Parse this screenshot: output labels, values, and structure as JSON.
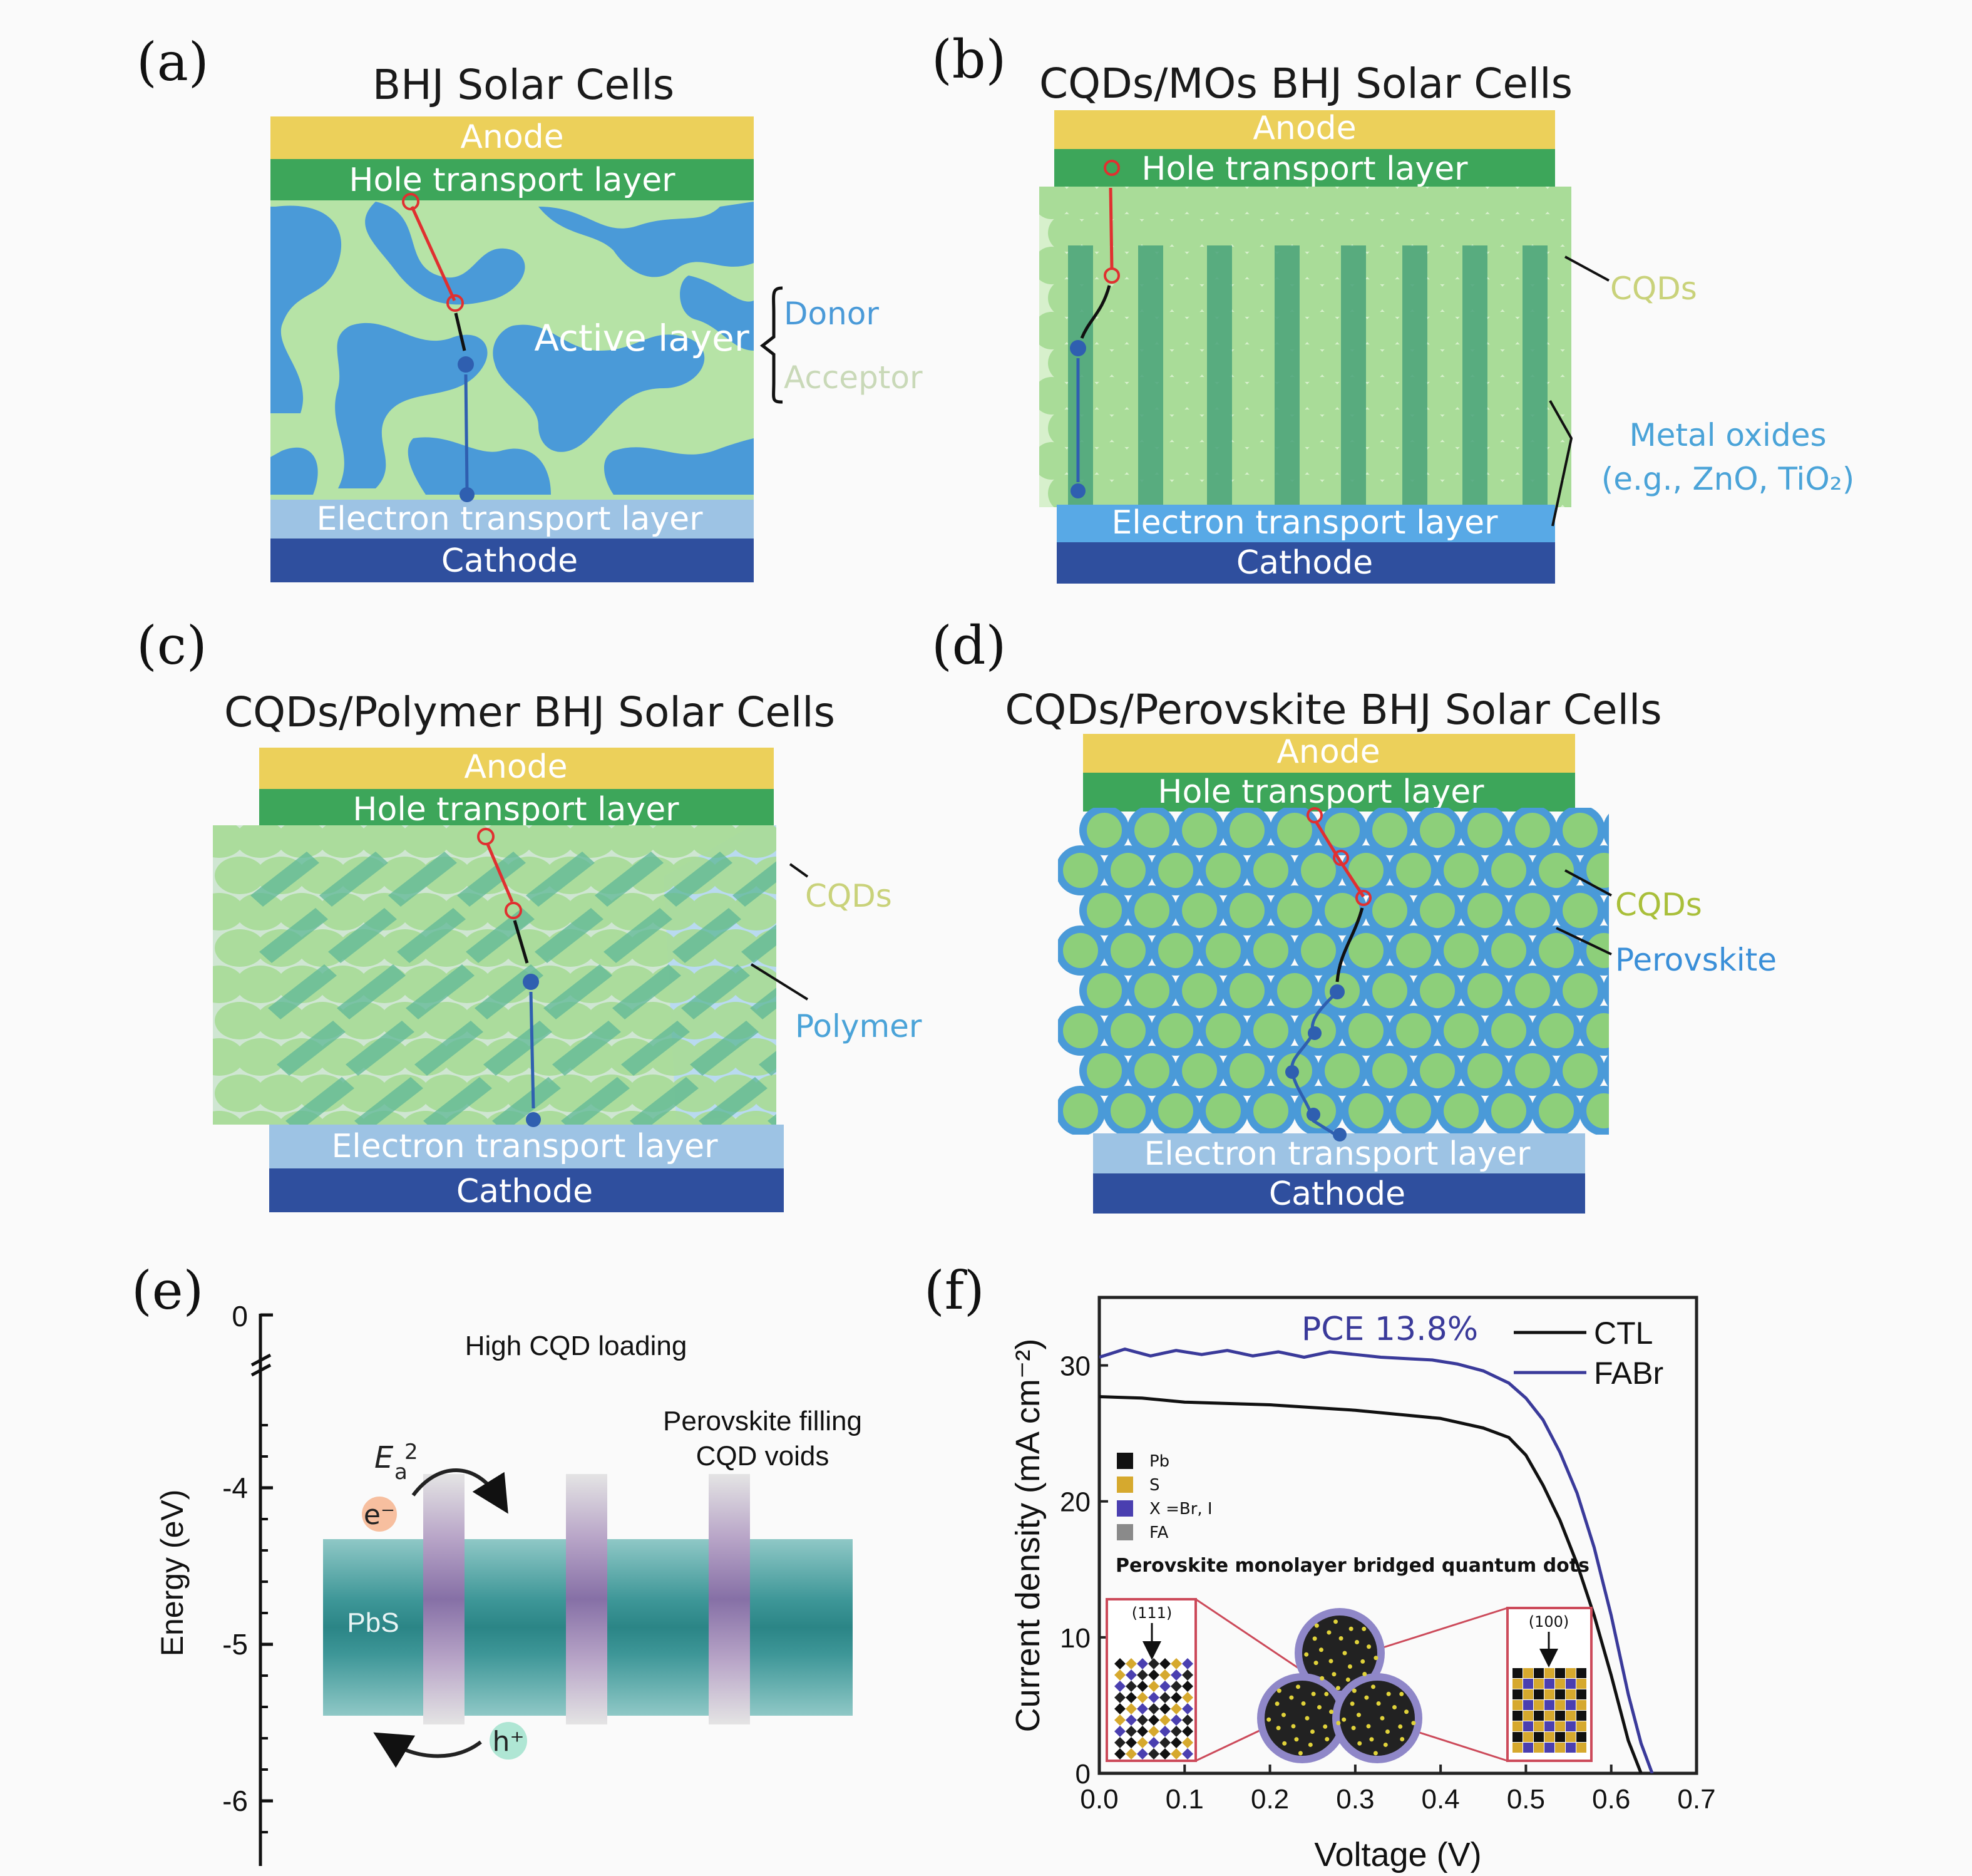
{
  "panels": {
    "a": {
      "label": "(a)",
      "title": "BHJ Solar Cells",
      "anode": "Anode",
      "htl": "Hole transport layer",
      "active": "Active layer",
      "etl": "Electron transport layer",
      "cathode": "Cathode",
      "donor": "Donor",
      "acceptor": "Acceptor"
    },
    "b": {
      "label": "(b)",
      "title": "CQDs/MOs BHJ Solar Cells",
      "anode": "Anode",
      "htl": "Hole transport layer",
      "etl": "Electron transport layer",
      "cathode": "Cathode",
      "cqds": "CQDs",
      "mo_line1": "Metal oxides",
      "mo_line2": "(e.g., ZnO, TiO₂)"
    },
    "c": {
      "label": "(c)",
      "title": "CQDs/Polymer BHJ Solar Cells",
      "anode": "Anode",
      "htl": "Hole transport layer",
      "etl": "Electron transport layer",
      "cathode": "Cathode",
      "cqds": "CQDs",
      "polymer": "Polymer"
    },
    "d": {
      "label": "(d)",
      "title": "CQDs/Perovskite BHJ Solar Cells",
      "anode": "Anode",
      "htl": "Hole transport layer",
      "etl": "Electron transport layer",
      "cathode": "Cathode",
      "cqds": "CQDs",
      "perovskite": "Perovskite"
    },
    "e": {
      "label": "(e)",
      "ylabel": "Energy (eV)",
      "ticks": [
        "0",
        "-4",
        "-5",
        "-6"
      ],
      "high_loading": "High CQD loading",
      "fill_line1": "Perovskite filling",
      "fill_line2": "CQD voids",
      "pbs": "PbS",
      "ea": "E",
      "ea_sub": "a",
      "ea_sup": "2",
      "electron": "e⁻",
      "hole": "h⁺"
    },
    "f": {
      "label": "(f)",
      "pce": "PCE 13.8%",
      "inset_title": "Perovskite monolayer bridged quantum dots",
      "inset_legend": [
        "Pb",
        "S",
        "X =Br, I",
        "FA"
      ],
      "facet_left": "(111)",
      "facet_right": "(100)"
    }
  },
  "colors": {
    "anode": "#ecd05a",
    "htl": "#3da65a",
    "etl": "#9dc3e4",
    "etl_b": "#58a9e6",
    "cathode": "#2f4f9e",
    "donor": "#4a9ad8",
    "acceptor": "#b6e3a6",
    "cqd": "#9fd790",
    "perovskite": "#4a9ad8",
    "ctl": "#111111",
    "fabr": "#3a3a9a",
    "hole": "#e03030",
    "electron": "#2f5fb0"
  },
  "chart_data": {
    "type": "line",
    "xlabel": "Voltage (V)",
    "ylabel": "Current density (mA cm⁻²)",
    "xlim": [
      0,
      0.7
    ],
    "ylim": [
      0,
      35
    ],
    "xticks": [
      0,
      0.1,
      0.2,
      0.3,
      0.4,
      0.5,
      0.6,
      0.7
    ],
    "yticks": [
      0,
      10,
      20,
      30
    ],
    "legend_position": "top-right",
    "annotation": "PCE 13.8%",
    "series": [
      {
        "name": "CTL",
        "color": "#111111",
        "x": [
          0,
          0.05,
          0.1,
          0.15,
          0.2,
          0.25,
          0.3,
          0.35,
          0.4,
          0.45,
          0.48,
          0.5,
          0.52,
          0.54,
          0.56,
          0.58,
          0.6,
          0.62,
          0.635
        ],
        "y": [
          27.7,
          27.6,
          27.3,
          27.2,
          27.1,
          26.9,
          26.7,
          26.4,
          26.1,
          25.4,
          24.7,
          23.4,
          21.2,
          18.6,
          15.4,
          11.6,
          7.2,
          2.4,
          0
        ]
      },
      {
        "name": "FABr",
        "color": "#3a3a9a",
        "x": [
          0,
          0.03,
          0.06,
          0.09,
          0.12,
          0.15,
          0.18,
          0.21,
          0.24,
          0.27,
          0.3,
          0.33,
          0.36,
          0.39,
          0.42,
          0.45,
          0.48,
          0.5,
          0.52,
          0.54,
          0.56,
          0.58,
          0.6,
          0.62,
          0.635,
          0.648
        ],
        "y": [
          30.6,
          31.2,
          30.7,
          31.1,
          30.8,
          31.1,
          30.7,
          31.0,
          30.6,
          31.0,
          30.8,
          30.6,
          30.5,
          30.4,
          30.1,
          29.6,
          28.7,
          27.6,
          26.0,
          23.6,
          20.6,
          16.6,
          11.6,
          5.8,
          2.2,
          0
        ]
      }
    ]
  }
}
